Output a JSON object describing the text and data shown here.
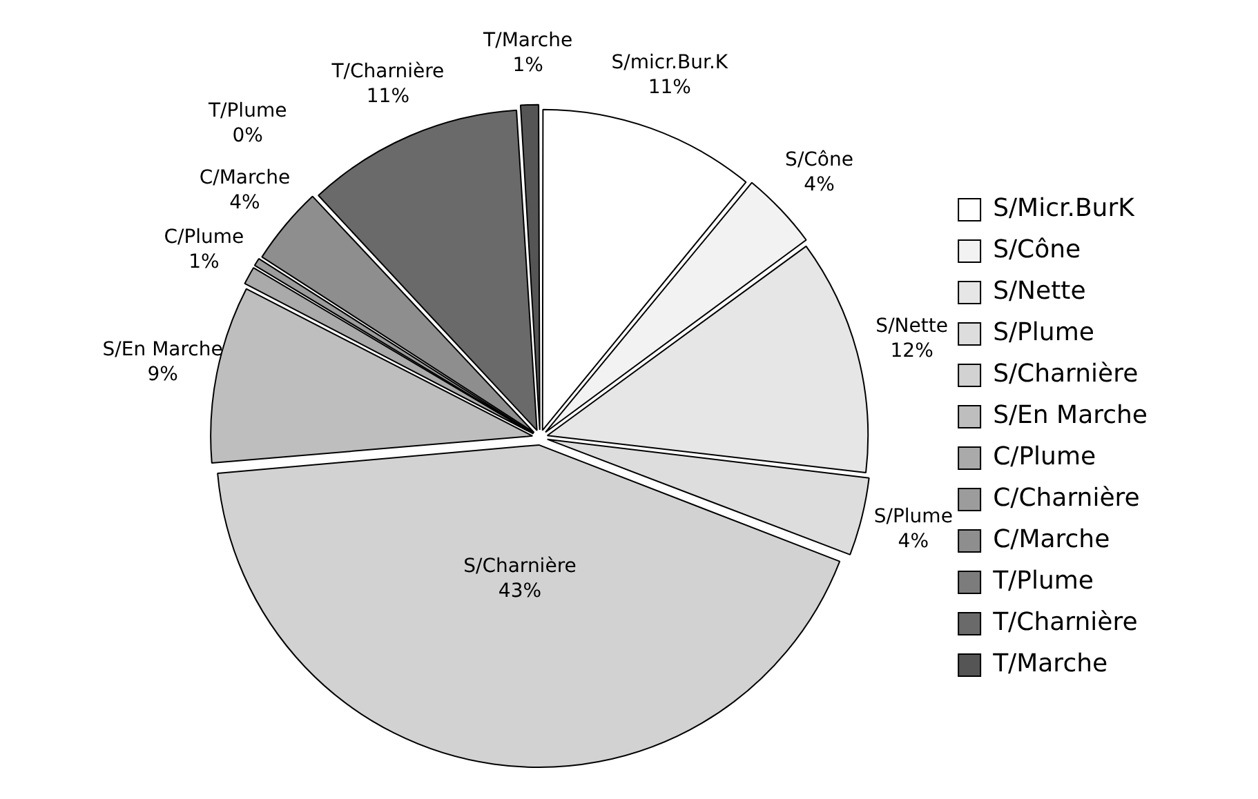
{
  "chart_data": {
    "type": "pie",
    "categories": [
      "S/Micr.BurK",
      "S/Cône",
      "S/Nette",
      "S/Plume",
      "S/Charnière",
      "S/En Marche",
      "C/Plume",
      "C/Charnière",
      "C/Marche",
      "T/Plume",
      "T/Charnière",
      "T/Marche"
    ],
    "values": [
      11,
      4,
      12,
      4,
      43,
      9,
      1,
      0.5,
      4,
      0,
      11,
      1
    ],
    "value_labels": [
      "S/micr.Bur.K 11%",
      "S/Cône 4%",
      "S/Nette 12%",
      "S/Plume 4%",
      "S/Charnière 43%",
      "S/En Marche 9%",
      "C/Plume 1%",
      null,
      "C/Marche 4%",
      "T/Plume 0%",
      "T/Charnière 11%",
      "T/Marche 1%"
    ],
    "colors": [
      "#ffffff",
      "#f2f2f2",
      "#e6e6e6",
      "#dddddd",
      "#d2d2d2",
      "#bebebe",
      "#aaaaaa",
      "#9c9c9c",
      "#8e8e8e",
      "#7c7c7c",
      "#6a6a6a",
      "#555555"
    ],
    "legend": "right"
  }
}
